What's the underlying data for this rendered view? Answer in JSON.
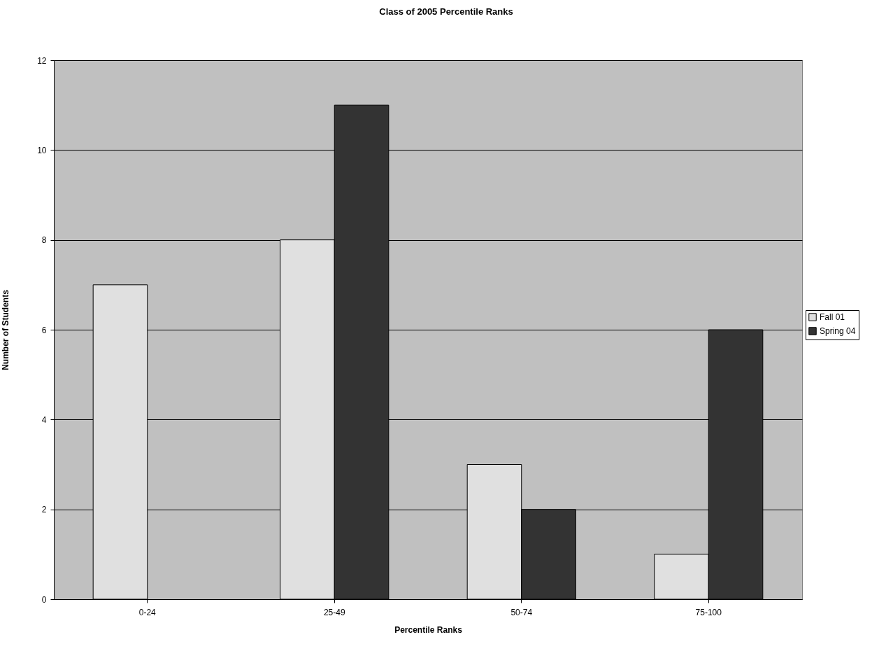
{
  "chart_data": {
    "type": "bar",
    "title": "Class of 2005 Percentile Ranks",
    "xlabel": "Percentile Ranks",
    "ylabel": "Number of Students",
    "categories": [
      "0-24",
      "25-49",
      "50-74",
      "75-100"
    ],
    "series": [
      {
        "name": "Fall 01",
        "color": "#e0e0e0",
        "values": [
          7,
          8,
          3,
          1
        ]
      },
      {
        "name": "Spring 04",
        "color": "#333333",
        "values": [
          null,
          11,
          2,
          6
        ]
      }
    ],
    "ylim": [
      0,
      12
    ],
    "yticks": [
      0,
      2,
      4,
      6,
      8,
      10,
      12
    ],
    "grid": "y",
    "legend": "right"
  }
}
